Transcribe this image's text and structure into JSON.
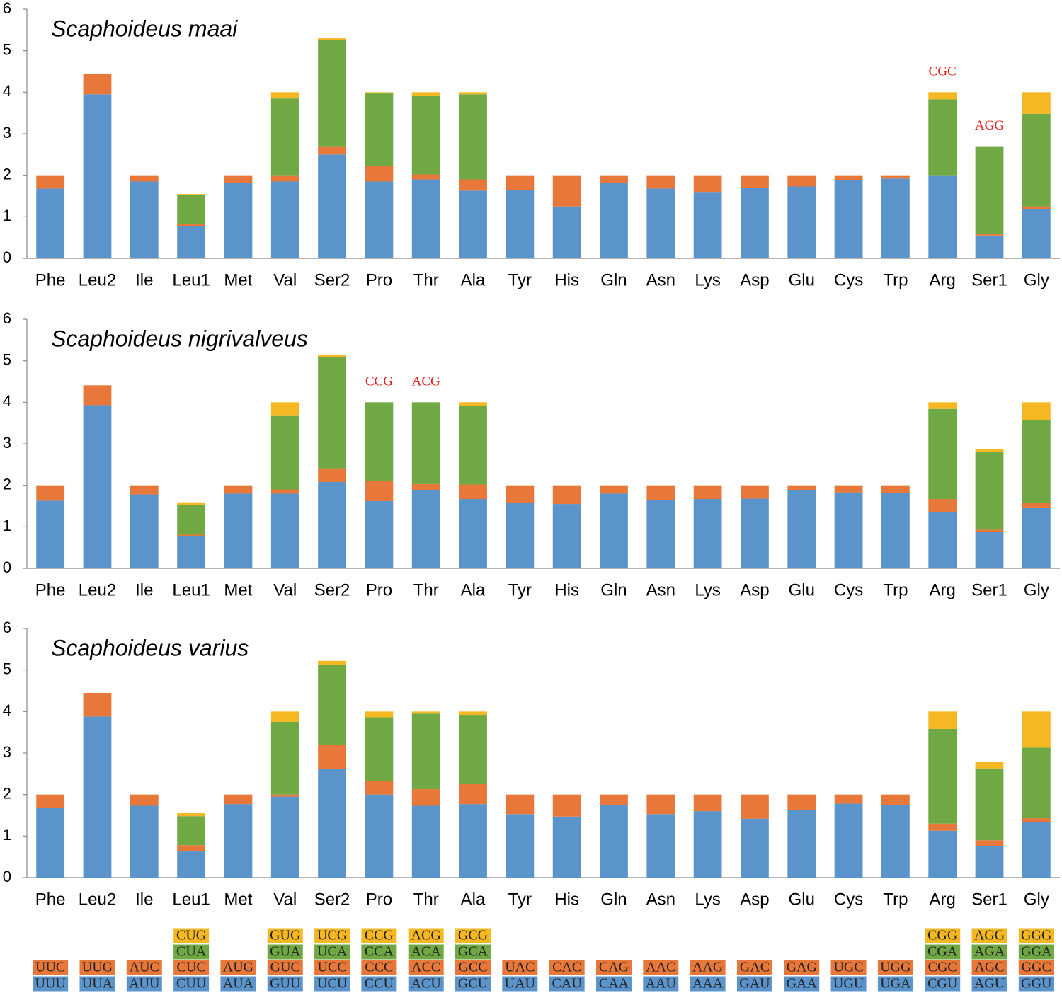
{
  "chart_data": [
    {
      "type": "bar",
      "title": "Scaphoideus maai",
      "categories": [
        "Phe",
        "Leu2",
        "Ile",
        "Leu1",
        "Met",
        "Val",
        "Ser2",
        "Pro",
        "Thr",
        "Ala",
        "Tyr",
        "His",
        "Gln",
        "Asn",
        "Lys",
        "Asp",
        "Glu",
        "Cys",
        "Trp",
        "Arg",
        "Ser1",
        "Gly"
      ],
      "ylim": [
        0,
        6
      ],
      "yticks": [
        0,
        1,
        2,
        3,
        4,
        5,
        6
      ],
      "stacked": true,
      "series": [
        {
          "color": "#5b93cb",
          "values": [
            1.68,
            3.95,
            1.85,
            0.78,
            1.82,
            1.85,
            2.5,
            1.85,
            1.9,
            1.63,
            1.65,
            1.25,
            1.82,
            1.68,
            1.6,
            1.7,
            1.73,
            1.88,
            1.92,
            2.0,
            0.55,
            1.18
          ]
        },
        {
          "color": "#e8783a",
          "values": [
            0.32,
            0.5,
            0.15,
            0.05,
            0.18,
            0.15,
            0.2,
            0.38,
            0.12,
            0.27,
            0.35,
            0.75,
            0.18,
            0.32,
            0.4,
            0.3,
            0.27,
            0.12,
            0.08,
            0,
            0.03,
            0.07
          ]
        },
        {
          "color": "#70a844",
          "values": [
            null,
            null,
            null,
            0.69,
            null,
            1.85,
            2.55,
            1.74,
            1.9,
            2.05,
            null,
            null,
            null,
            null,
            null,
            null,
            null,
            null,
            null,
            1.83,
            2.12,
            2.23
          ]
        },
        {
          "color": "#f5b823",
          "values": [
            null,
            null,
            null,
            0.03,
            null,
            0.15,
            0.05,
            0.03,
            0.08,
            0.05,
            null,
            null,
            null,
            null,
            null,
            null,
            null,
            null,
            null,
            0.17,
            0,
            0.52
          ]
        }
      ],
      "annotations": [
        {
          "text": "CGC",
          "category": "Arg"
        },
        {
          "text": "AGG",
          "category": "Ser1"
        }
      ]
    },
    {
      "type": "bar",
      "title": "Scaphoideus nigrivalveus",
      "categories": [
        "Phe",
        "Leu2",
        "Ile",
        "Leu1",
        "Met",
        "Val",
        "Ser2",
        "Pro",
        "Thr",
        "Ala",
        "Tyr",
        "His",
        "Gln",
        "Asn",
        "Lys",
        "Asp",
        "Glu",
        "Cys",
        "Trp",
        "Arg",
        "Ser1",
        "Gly"
      ],
      "ylim": [
        0,
        6
      ],
      "yticks": [
        0,
        1,
        2,
        3,
        4,
        5,
        6
      ],
      "stacked": true,
      "series": [
        {
          "color": "#5b93cb",
          "values": [
            1.63,
            3.93,
            1.78,
            0.78,
            1.8,
            1.8,
            2.08,
            1.62,
            1.88,
            1.67,
            1.57,
            1.55,
            1.8,
            1.65,
            1.67,
            1.68,
            1.88,
            1.83,
            1.82,
            1.35,
            0.87,
            1.45
          ]
        },
        {
          "color": "#e8783a",
          "values": [
            0.37,
            0.48,
            0.22,
            0.03,
            0.2,
            0.1,
            0.33,
            0.48,
            0.15,
            0.35,
            0.43,
            0.45,
            0.2,
            0.35,
            0.33,
            0.32,
            0.12,
            0.17,
            0.18,
            0.32,
            0.06,
            0.12
          ]
        },
        {
          "color": "#70a844",
          "values": [
            null,
            null,
            null,
            0.72,
            null,
            1.77,
            2.67,
            1.9,
            1.97,
            1.9,
            null,
            null,
            null,
            null,
            null,
            null,
            null,
            null,
            null,
            2.17,
            1.87,
            2.0
          ]
        },
        {
          "color": "#f5b823",
          "values": [
            null,
            null,
            null,
            0.06,
            null,
            0.33,
            0.07,
            0,
            0,
            0.08,
            null,
            null,
            null,
            null,
            null,
            null,
            null,
            null,
            null,
            0.16,
            0.07,
            0.43
          ]
        }
      ],
      "annotations": [
        {
          "text": "CCG",
          "category": "Pro"
        },
        {
          "text": "ACG",
          "category": "Thr"
        }
      ]
    },
    {
      "type": "bar",
      "title": "Scaphoideus varius",
      "categories": [
        "Phe",
        "Leu2",
        "Ile",
        "Leu1",
        "Met",
        "Val",
        "Ser2",
        "Pro",
        "Thr",
        "Ala",
        "Tyr",
        "His",
        "Gln",
        "Asn",
        "Lys",
        "Asp",
        "Glu",
        "Cys",
        "Trp",
        "Arg",
        "Ser1",
        "Gly"
      ],
      "ylim": [
        0,
        6
      ],
      "yticks": [
        0,
        1,
        2,
        3,
        4,
        5,
        6
      ],
      "stacked": true,
      "series": [
        {
          "color": "#5b93cb",
          "values": [
            1.68,
            3.88,
            1.73,
            0.63,
            1.77,
            1.95,
            2.62,
            2.0,
            1.73,
            1.77,
            1.53,
            1.47,
            1.75,
            1.53,
            1.6,
            1.42,
            1.63,
            1.78,
            1.75,
            1.13,
            0.75,
            1.33
          ]
        },
        {
          "color": "#e8783a",
          "values": [
            0.32,
            0.57,
            0.27,
            0.15,
            0.23,
            0.05,
            0.57,
            0.33,
            0.4,
            0.48,
            0.47,
            0.53,
            0.25,
            0.47,
            0.4,
            0.58,
            0.37,
            0.22,
            0.25,
            0.17,
            0.15,
            0.1
          ]
        },
        {
          "color": "#70a844",
          "values": [
            null,
            null,
            null,
            0.7,
            null,
            1.75,
            1.93,
            1.53,
            1.82,
            1.67,
            null,
            null,
            null,
            null,
            null,
            null,
            null,
            null,
            null,
            2.28,
            1.73,
            1.7
          ]
        },
        {
          "color": "#f5b823",
          "values": [
            null,
            null,
            null,
            0.07,
            null,
            0.25,
            0.1,
            0.14,
            0.05,
            0.08,
            null,
            null,
            null,
            null,
            null,
            null,
            null,
            null,
            null,
            0.42,
            0.15,
            0.87
          ]
        }
      ]
    }
  ],
  "codon_table": [
    [
      "UUU",
      "UUC"
    ],
    [
      "UUA",
      "UUG"
    ],
    [
      "AUU",
      "AUC"
    ],
    [
      "CUU",
      "CUC",
      "CUA",
      "CUG"
    ],
    [
      "AUA",
      "AUG"
    ],
    [
      "GUU",
      "GUC",
      "GUA",
      "GUG"
    ],
    [
      "UCU",
      "UCC",
      "UCA",
      "UCG"
    ],
    [
      "CCU",
      "CCC",
      "CCA",
      "CCG"
    ],
    [
      "ACU",
      "ACC",
      "ACA",
      "ACG"
    ],
    [
      "GCU",
      "GCC",
      "GCA",
      "GCG"
    ],
    [
      "UAU",
      "UAC"
    ],
    [
      "CAU",
      "CAC"
    ],
    [
      "CAA",
      "CAG"
    ],
    [
      "AAU",
      "AAC"
    ],
    [
      "AAA",
      "AAG"
    ],
    [
      "GAU",
      "GAC"
    ],
    [
      "GAA",
      "GAG"
    ],
    [
      "UGU",
      "UGC"
    ],
    [
      "UGA",
      "UGG"
    ],
    [
      "CGU",
      "CGC",
      "CGA",
      "CGG"
    ],
    [
      "AGU",
      "AGC",
      "AGA",
      "AGG"
    ],
    [
      "GGU",
      "GGC",
      "GGA",
      "GGG"
    ]
  ]
}
